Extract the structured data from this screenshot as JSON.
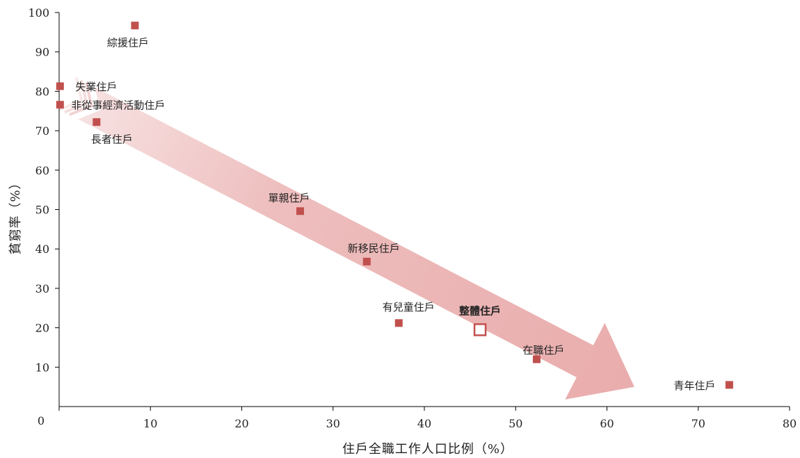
{
  "chart_data": {
    "type": "scatter",
    "title": "",
    "xlabel": "住戶全職工作人口比例（%）",
    "ylabel": "貧窮率（%）",
    "xlim": [
      0,
      80
    ],
    "ylim": [
      0,
      100
    ],
    "xticks": [
      0,
      10,
      20,
      30,
      40,
      50,
      60,
      70,
      80
    ],
    "yticks": [
      10,
      20,
      30,
      40,
      50,
      60,
      70,
      80,
      90,
      100
    ],
    "grid": false,
    "legend": "none",
    "colors": {
      "marker": "#c0504d",
      "trend_arrow": "#e8a8a8",
      "axis": "#000000"
    },
    "trend_arrow": {
      "from": [
        3,
        77
      ],
      "to": [
        63,
        5
      ]
    },
    "points": [
      {
        "label": "綜援住戶",
        "x": 8.3,
        "y": 96.7,
        "highlight": false
      },
      {
        "label": "失業住戶",
        "x": 0.1,
        "y": 81.3,
        "highlight": false
      },
      {
        "label": "非從事經濟活動住戶",
        "x": 0.1,
        "y": 76.6,
        "highlight": false
      },
      {
        "label": "長者住戶",
        "x": 4.1,
        "y": 72.2,
        "highlight": false
      },
      {
        "label": "單親住戶",
        "x": 26.4,
        "y": 49.6,
        "highlight": false
      },
      {
        "label": "新移民住戶",
        "x": 33.7,
        "y": 36.8,
        "highlight": false
      },
      {
        "label": "有兒童住戶",
        "x": 37.2,
        "y": 21.2,
        "highlight": false
      },
      {
        "label": "整體住戶",
        "x": 46.1,
        "y": 19.5,
        "highlight": true
      },
      {
        "label": "在職住戶",
        "x": 52.3,
        "y": 12.0,
        "highlight": false
      },
      {
        "label": "青年住戶",
        "x": 73.4,
        "y": 5.5,
        "highlight": false
      }
    ]
  }
}
